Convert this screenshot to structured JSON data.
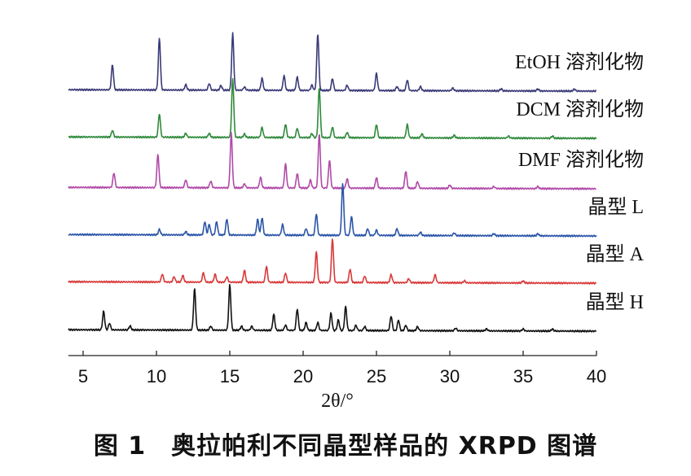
{
  "caption": "图 1　奥拉帕利不同晶型样品的 XRPD 图谱",
  "chart_data": {
    "type": "line",
    "title": "",
    "xlabel": "2θ/°",
    "ylabel": "",
    "xlim": [
      4,
      40
    ],
    "xticks": [
      5,
      10,
      15,
      20,
      25,
      30,
      35,
      40
    ],
    "grid": false,
    "legend": "inline-labels-right",
    "series": [
      {
        "name": "EtOH 溶剂化物",
        "color": "#3a3a78",
        "peaks": [
          [
            7.0,
            0.38
          ],
          [
            10.2,
            0.78
          ],
          [
            12.0,
            0.08
          ],
          [
            13.6,
            0.1
          ],
          [
            14.4,
            0.07
          ],
          [
            15.2,
            0.85
          ],
          [
            16.0,
            0.05
          ],
          [
            17.2,
            0.18
          ],
          [
            18.7,
            0.22
          ],
          [
            19.6,
            0.2
          ],
          [
            20.6,
            0.08
          ],
          [
            21.0,
            0.85
          ],
          [
            22.0,
            0.18
          ],
          [
            23.0,
            0.08
          ],
          [
            25.0,
            0.26
          ],
          [
            26.4,
            0.06
          ],
          [
            27.1,
            0.16
          ],
          [
            28.0,
            0.06
          ],
          [
            30.2,
            0.04
          ],
          [
            33.5,
            0.03
          ],
          [
            36.0,
            0.03
          ],
          [
            38.5,
            0.03
          ]
        ]
      },
      {
        "name": "DCM 溶剂化物",
        "color": "#2f8a3c",
        "peaks": [
          [
            7.0,
            0.1
          ],
          [
            10.2,
            0.35
          ],
          [
            12.0,
            0.06
          ],
          [
            13.6,
            0.06
          ],
          [
            15.2,
            0.88
          ],
          [
            16.0,
            0.05
          ],
          [
            17.2,
            0.15
          ],
          [
            18.8,
            0.2
          ],
          [
            19.6,
            0.14
          ],
          [
            20.6,
            0.06
          ],
          [
            21.1,
            0.75
          ],
          [
            22.0,
            0.16
          ],
          [
            23.0,
            0.08
          ],
          [
            25.0,
            0.2
          ],
          [
            27.1,
            0.2
          ],
          [
            28.1,
            0.06
          ],
          [
            30.3,
            0.04
          ],
          [
            34.0,
            0.03
          ],
          [
            37.0,
            0.03
          ]
        ]
      },
      {
        "name": "DMF 溶剂化物",
        "color": "#b04aa8",
        "peaks": [
          [
            7.1,
            0.22
          ],
          [
            10.1,
            0.5
          ],
          [
            12.0,
            0.12
          ],
          [
            13.7,
            0.1
          ],
          [
            15.1,
            0.82
          ],
          [
            16.0,
            0.06
          ],
          [
            17.1,
            0.16
          ],
          [
            18.8,
            0.36
          ],
          [
            19.6,
            0.22
          ],
          [
            20.5,
            0.12
          ],
          [
            21.1,
            0.82
          ],
          [
            21.8,
            0.42
          ],
          [
            23.0,
            0.14
          ],
          [
            25.0,
            0.16
          ],
          [
            27.0,
            0.26
          ],
          [
            27.8,
            0.1
          ],
          [
            30.0,
            0.05
          ],
          [
            33.0,
            0.03
          ],
          [
            36.0,
            0.03
          ]
        ]
      },
      {
        "name": "晶型 L",
        "color": "#2a55a8",
        "peaks": [
          [
            10.2,
            0.08
          ],
          [
            12.0,
            0.05
          ],
          [
            13.3,
            0.2
          ],
          [
            13.6,
            0.16
          ],
          [
            14.1,
            0.2
          ],
          [
            14.8,
            0.24
          ],
          [
            16.9,
            0.24
          ],
          [
            17.2,
            0.26
          ],
          [
            18.6,
            0.16
          ],
          [
            20.2,
            0.1
          ],
          [
            20.9,
            0.32
          ],
          [
            22.7,
            0.78
          ],
          [
            23.3,
            0.28
          ],
          [
            24.4,
            0.1
          ],
          [
            25.0,
            0.08
          ],
          [
            26.4,
            0.1
          ],
          [
            28.0,
            0.05
          ],
          [
            30.3,
            0.04
          ],
          [
            33.0,
            0.03
          ],
          [
            36.0,
            0.03
          ]
        ]
      },
      {
        "name": "晶型 A",
        "color": "#d83a3a",
        "peaks": [
          [
            10.4,
            0.12
          ],
          [
            11.2,
            0.08
          ],
          [
            11.8,
            0.1
          ],
          [
            13.2,
            0.14
          ],
          [
            14.0,
            0.12
          ],
          [
            14.8,
            0.08
          ],
          [
            16.0,
            0.18
          ],
          [
            17.5,
            0.24
          ],
          [
            18.8,
            0.14
          ],
          [
            20.9,
            0.46
          ],
          [
            22.0,
            0.66
          ],
          [
            23.2,
            0.2
          ],
          [
            24.2,
            0.1
          ],
          [
            26.0,
            0.12
          ],
          [
            27.2,
            0.06
          ],
          [
            29.0,
            0.12
          ],
          [
            31.0,
            0.03
          ],
          [
            35.0,
            0.03
          ]
        ]
      },
      {
        "name": "晶型 H",
        "color": "#111111",
        "peaks": [
          [
            6.4,
            0.28
          ],
          [
            6.8,
            0.1
          ],
          [
            8.2,
            0.06
          ],
          [
            12.6,
            0.62
          ],
          [
            13.7,
            0.06
          ],
          [
            15.0,
            0.68
          ],
          [
            15.8,
            0.06
          ],
          [
            16.5,
            0.06
          ],
          [
            18.0,
            0.24
          ],
          [
            18.8,
            0.08
          ],
          [
            19.6,
            0.32
          ],
          [
            20.2,
            0.12
          ],
          [
            21.0,
            0.12
          ],
          [
            21.9,
            0.26
          ],
          [
            22.4,
            0.16
          ],
          [
            22.9,
            0.36
          ],
          [
            23.6,
            0.08
          ],
          [
            24.2,
            0.06
          ],
          [
            26.0,
            0.22
          ],
          [
            26.5,
            0.16
          ],
          [
            27.0,
            0.08
          ],
          [
            27.8,
            0.06
          ],
          [
            30.4,
            0.04
          ],
          [
            32.5,
            0.03
          ],
          [
            35.0,
            0.03
          ],
          [
            37.0,
            0.03
          ]
        ]
      }
    ]
  }
}
